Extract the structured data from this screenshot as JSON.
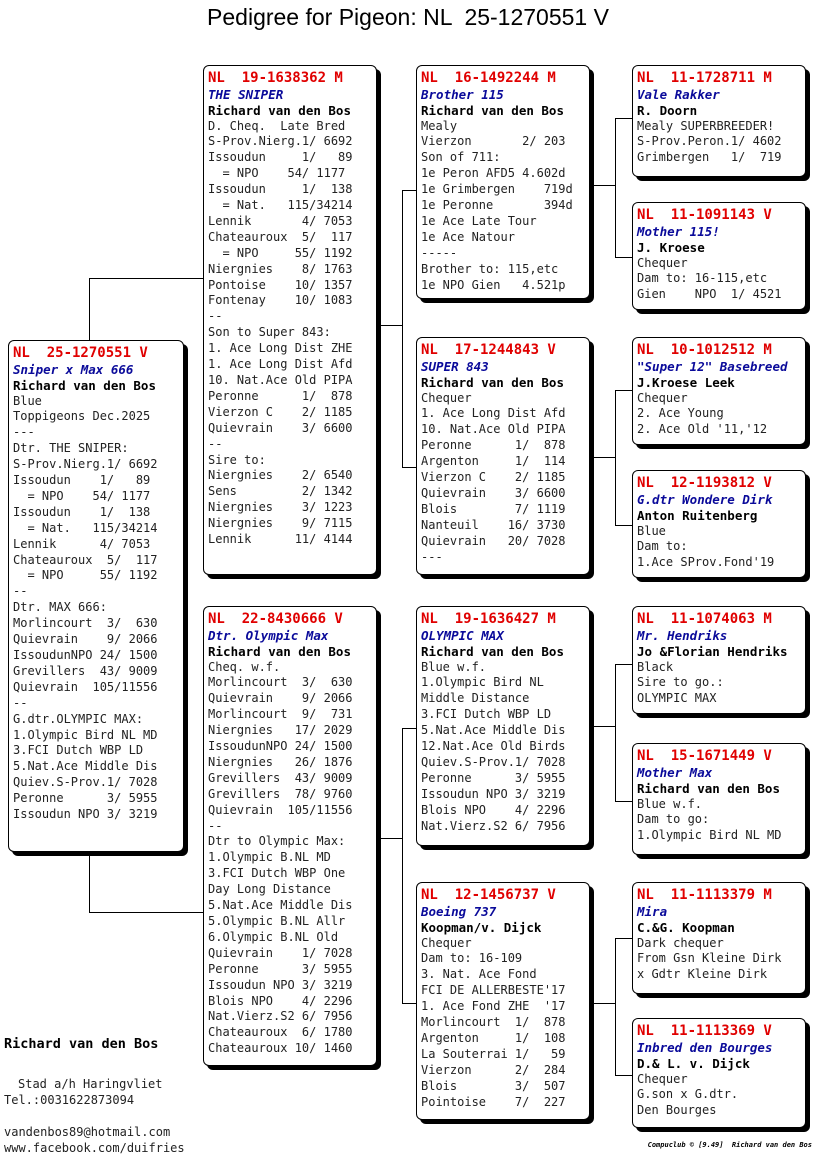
{
  "title": "Pedigree for Pigeon: NL  25-1270551 V",
  "subject": {
    "ring": "NL  25-1270551 V",
    "name": "Sniper x Max 666",
    "owner": "Richard van den Bos",
    "lines": [
      "Blue",
      "Toppigeons Dec.2025",
      "---",
      "Dtr. THE SNIPER:",
      "S-Prov.Nierg.1/ 6692",
      "Issoudun    1/   89",
      "  = NPO    54/ 1177",
      "Issoudun    1/  138",
      "  = Nat.   115/34214",
      "Lennik      4/ 7053",
      "Chateauroux  5/  117",
      "  = NPO     55/ 1192",
      "--",
      "Dtr. MAX 666:",
      "Morlincourt  3/  630",
      "Quievrain    9/ 2066",
      "IssoudunNPO 24/ 1500",
      "Grevillers  43/ 9009",
      "Quievrain  105/11556",
      "--",
      "G.dtr.OLYMPIC MAX:",
      "1.Olympic Bird NL MD",
      "3.FCI Dutch WBP LD",
      "5.Nat.Ace Middle Dis",
      "Quiev.S-Prov.1/ 7028",
      "Peronne      3/ 5955",
      "Issoudun NPO 3/ 3219"
    ]
  },
  "sire": {
    "ring": "NL  19-1638362 M",
    "name": "THE SNIPER",
    "owner": "Richard van den Bos",
    "lines": [
      "D. Cheq.  Late Bred",
      "S-Prov.Nierg.1/ 6692",
      "Issoudun     1/   89",
      "  = NPO    54/ 1177",
      "Issoudun     1/  138",
      "  = Nat.   115/34214",
      "Lennik       4/ 7053",
      "Chateauroux  5/  117",
      "  = NPO     55/ 1192",
      "Niergnies    8/ 1763",
      "Pontoise    10/ 1357",
      "Fontenay    10/ 1083",
      "--",
      "Son to Super 843:",
      "1. Ace Long Dist ZHE",
      "1. Ace Long Dist Afd",
      "10. Nat.Ace Old PIPA",
      "Peronne      1/  878",
      "Vierzon C    2/ 1185",
      "Quievrain    3/ 6600",
      "--",
      "Sire to:",
      "Niergnies    2/ 6540",
      "Sens         2/ 1342",
      "Niergnies    3/ 1223",
      "Niergnies    9/ 7115",
      "Lennik      11/ 4144"
    ]
  },
  "dam": {
    "ring": "NL  22-8430666 V",
    "name": "Dtr. Olympic Max",
    "owner": "Richard van den Bos",
    "lines": [
      "Cheq. w.f.",
      "Morlincourt  3/  630",
      "Quievrain    9/ 2066",
      "Morlincourt  9/  731",
      "Niergnies   17/ 2029",
      "IssoudunNPO 24/ 1500",
      "Niergnies   26/ 1876",
      "Grevillers  43/ 9009",
      "Grevillers  78/ 9760",
      "Quievrain  105/11556",
      "--",
      "Dtr to Olympic Max:",
      "1.Olympic B.NL MD",
      "3.FCI Dutch WBP One",
      "Day Long Distance",
      "5.Nat.Ace Middle Dis",
      "5.Olympic B.NL Allr",
      "6.Olympic B.NL Old",
      "Quievrain    1/ 7028",
      "Peronne      3/ 5955",
      "Issoudun NPO 3/ 3219",
      "Blois NPO    4/ 2296",
      "Nat.Vierz.S2 6/ 7956",
      "Chateauroux  6/ 1780",
      "Chateauroux 10/ 1460"
    ]
  },
  "ss": {
    "ring": "NL  16-1492244 M",
    "name": "Brother 115",
    "owner": "Richard van den Bos",
    "lines": [
      "Mealy",
      "Vierzon       2/ 203",
      "Son of 711:",
      "1e Peron AFD5 4.602d",
      "1e Grimbergen    719d",
      "1e Peronne       394d",
      "1e Ace Late Tour",
      "1e Ace Natour",
      "-----",
      "Brother to: 115,etc",
      "1e NPO Gien   4.521p"
    ]
  },
  "sd": {
    "ring": "NL  17-1244843 V",
    "name": "SUPER 843",
    "owner": "Richard van den Bos",
    "lines": [
      "Chequer",
      "1. Ace Long Dist Afd",
      "10. Nat.Ace Old PIPA",
      "Peronne      1/  878",
      "Argenton     1/  114",
      "Vierzon C    2/ 1185",
      "Quievrain    3/ 6600",
      "Blois        7/ 1119",
      "Nanteuil    16/ 3730",
      "Quievrain   20/ 7028",
      "---"
    ]
  },
  "ds": {
    "ring": "NL  19-1636427 M",
    "name": "OLYMPIC MAX",
    "owner": "Richard van den Bos",
    "lines": [
      "Blue w.f.",
      "1.Olympic Bird NL",
      "Middle Distance",
      "3.FCI Dutch WBP LD",
      "5.Nat.Ace Middle Dis",
      "12.Nat.Ace Old Birds",
      "Quiev.S-Prov.1/ 7028",
      "Peronne      3/ 5955",
      "Issoudun NPO 3/ 3219",
      "Blois NPO    4/ 2296",
      "Nat.Vierz.S2 6/ 7956"
    ]
  },
  "dd": {
    "ring": "NL  12-1456737 V",
    "name": "Boeing 737",
    "owner": "Koopman/v. Dijck",
    "lines": [
      "Chequer",
      "Dam to: 16-109",
      "3. Nat. Ace Fond",
      "FCI DE ALLERBESTE'17",
      "1. Ace Fond ZHE  '17",
      "Morlincourt  1/  878",
      "Argenton     1/  108",
      "La Souterrai 1/   59",
      "Vierzon      2/  284",
      "Blois        3/  507",
      "Pointoise    7/  227"
    ]
  },
  "sss": {
    "ring": "NL  11-1728711 M",
    "name": "Vale Rakker",
    "owner": "R. Doorn",
    "lines": [
      "Mealy SUPERBREEDER!",
      "S-Prov.Peron.1/ 4602",
      "Grimbergen   1/  719"
    ]
  },
  "ssd": {
    "ring": "NL  11-1091143 V",
    "name": "Mother 115!",
    "owner": "J. Kroese",
    "lines": [
      "Chequer",
      "Dam to: 16-115,etc",
      "Gien    NPO  1/ 4521"
    ]
  },
  "sds": {
    "ring": "NL  10-1012512 M",
    "name": "\"Super 12\" Basebreed",
    "owner": "J.Kroese Leek",
    "lines": [
      "Chequer",
      "2. Ace Young",
      "2. Ace Old '11,'12"
    ]
  },
  "sdd": {
    "ring": "NL  12-1193812 V",
    "name": "G.dtr Wondere Dirk",
    "owner": "Anton Ruitenberg",
    "lines": [
      "Blue",
      "Dam to:",
      "1.Ace SProv.Fond'19"
    ]
  },
  "dss": {
    "ring": "NL  11-1074063 M",
    "name": "Mr. Hendriks",
    "owner": "Jo &Florian Hendriks",
    "lines": [
      "Black",
      "Sire to go.:",
      "OLYMPIC MAX"
    ]
  },
  "dsd": {
    "ring": "NL  15-1671449 V",
    "name": "Mother Max",
    "owner": "Richard van den Bos",
    "lines": [
      "Blue w.f.",
      "Dam to go:",
      "1.Olympic Bird NL MD"
    ]
  },
  "dds": {
    "ring": "NL  11-1113379 M",
    "name": "Mira",
    "owner": "C.&G. Koopman",
    "lines": [
      "Dark chequer",
      "From Gsn Kleine Dirk",
      "x Gdtr Kleine Dirk"
    ]
  },
  "ddd": {
    "ring": "NL  11-1113369 V",
    "name": "Inbred den Bourges",
    "owner": "D.& L. v. Dijck",
    "lines": [
      "Chequer",
      "G.son x G.dtr.",
      "Den Bourges"
    ]
  },
  "breeder": {
    "name": "Richard van den Bos",
    "address": "Stad a/h Haringvliet",
    "phone": "Tel.:0031622873094",
    "email": "vandenbos89@hotmail.com",
    "web": "www.facebook.com/duifries"
  },
  "footer": "Compuclub © [9.49]  Richard van den Bos"
}
